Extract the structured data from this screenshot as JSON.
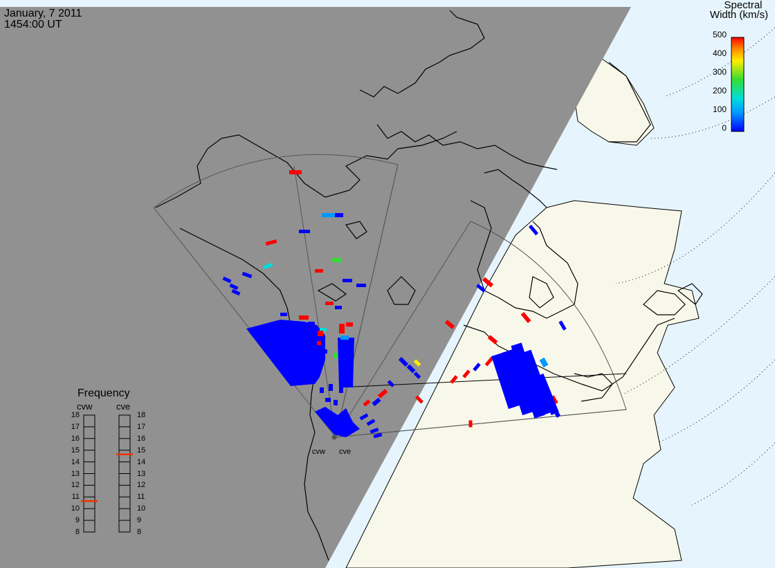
{
  "header": {
    "date": "January, 7 2011",
    "time": "1454:00 UT"
  },
  "colorbar": {
    "title_line1": "Spectral",
    "title_line2": "Width (km/s)",
    "ticks": [
      "500",
      "400",
      "300",
      "200",
      "100",
      "0"
    ],
    "colors": [
      "#ff0000",
      "#ff8800",
      "#ffee00",
      "#33dd33",
      "#00dddd",
      "#0099ff",
      "#0000ff"
    ]
  },
  "frequency": {
    "title": "Frequency",
    "radars": [
      {
        "name": "cvw",
        "selected": 11
      },
      {
        "name": "cve",
        "selected": 15
      }
    ],
    "labels": [
      "18",
      "17",
      "16",
      "15",
      "14",
      "13",
      "12",
      "11",
      "10",
      "9",
      "8"
    ]
  },
  "stations": {
    "west": "cvw",
    "east": "cve"
  },
  "colors": {
    "night": "#919191",
    "land": "#f8f8ea",
    "ocean": "#e6f5fd",
    "coast": "#000000",
    "fov": "#666666",
    "selected_freq": "#ee3300"
  }
}
